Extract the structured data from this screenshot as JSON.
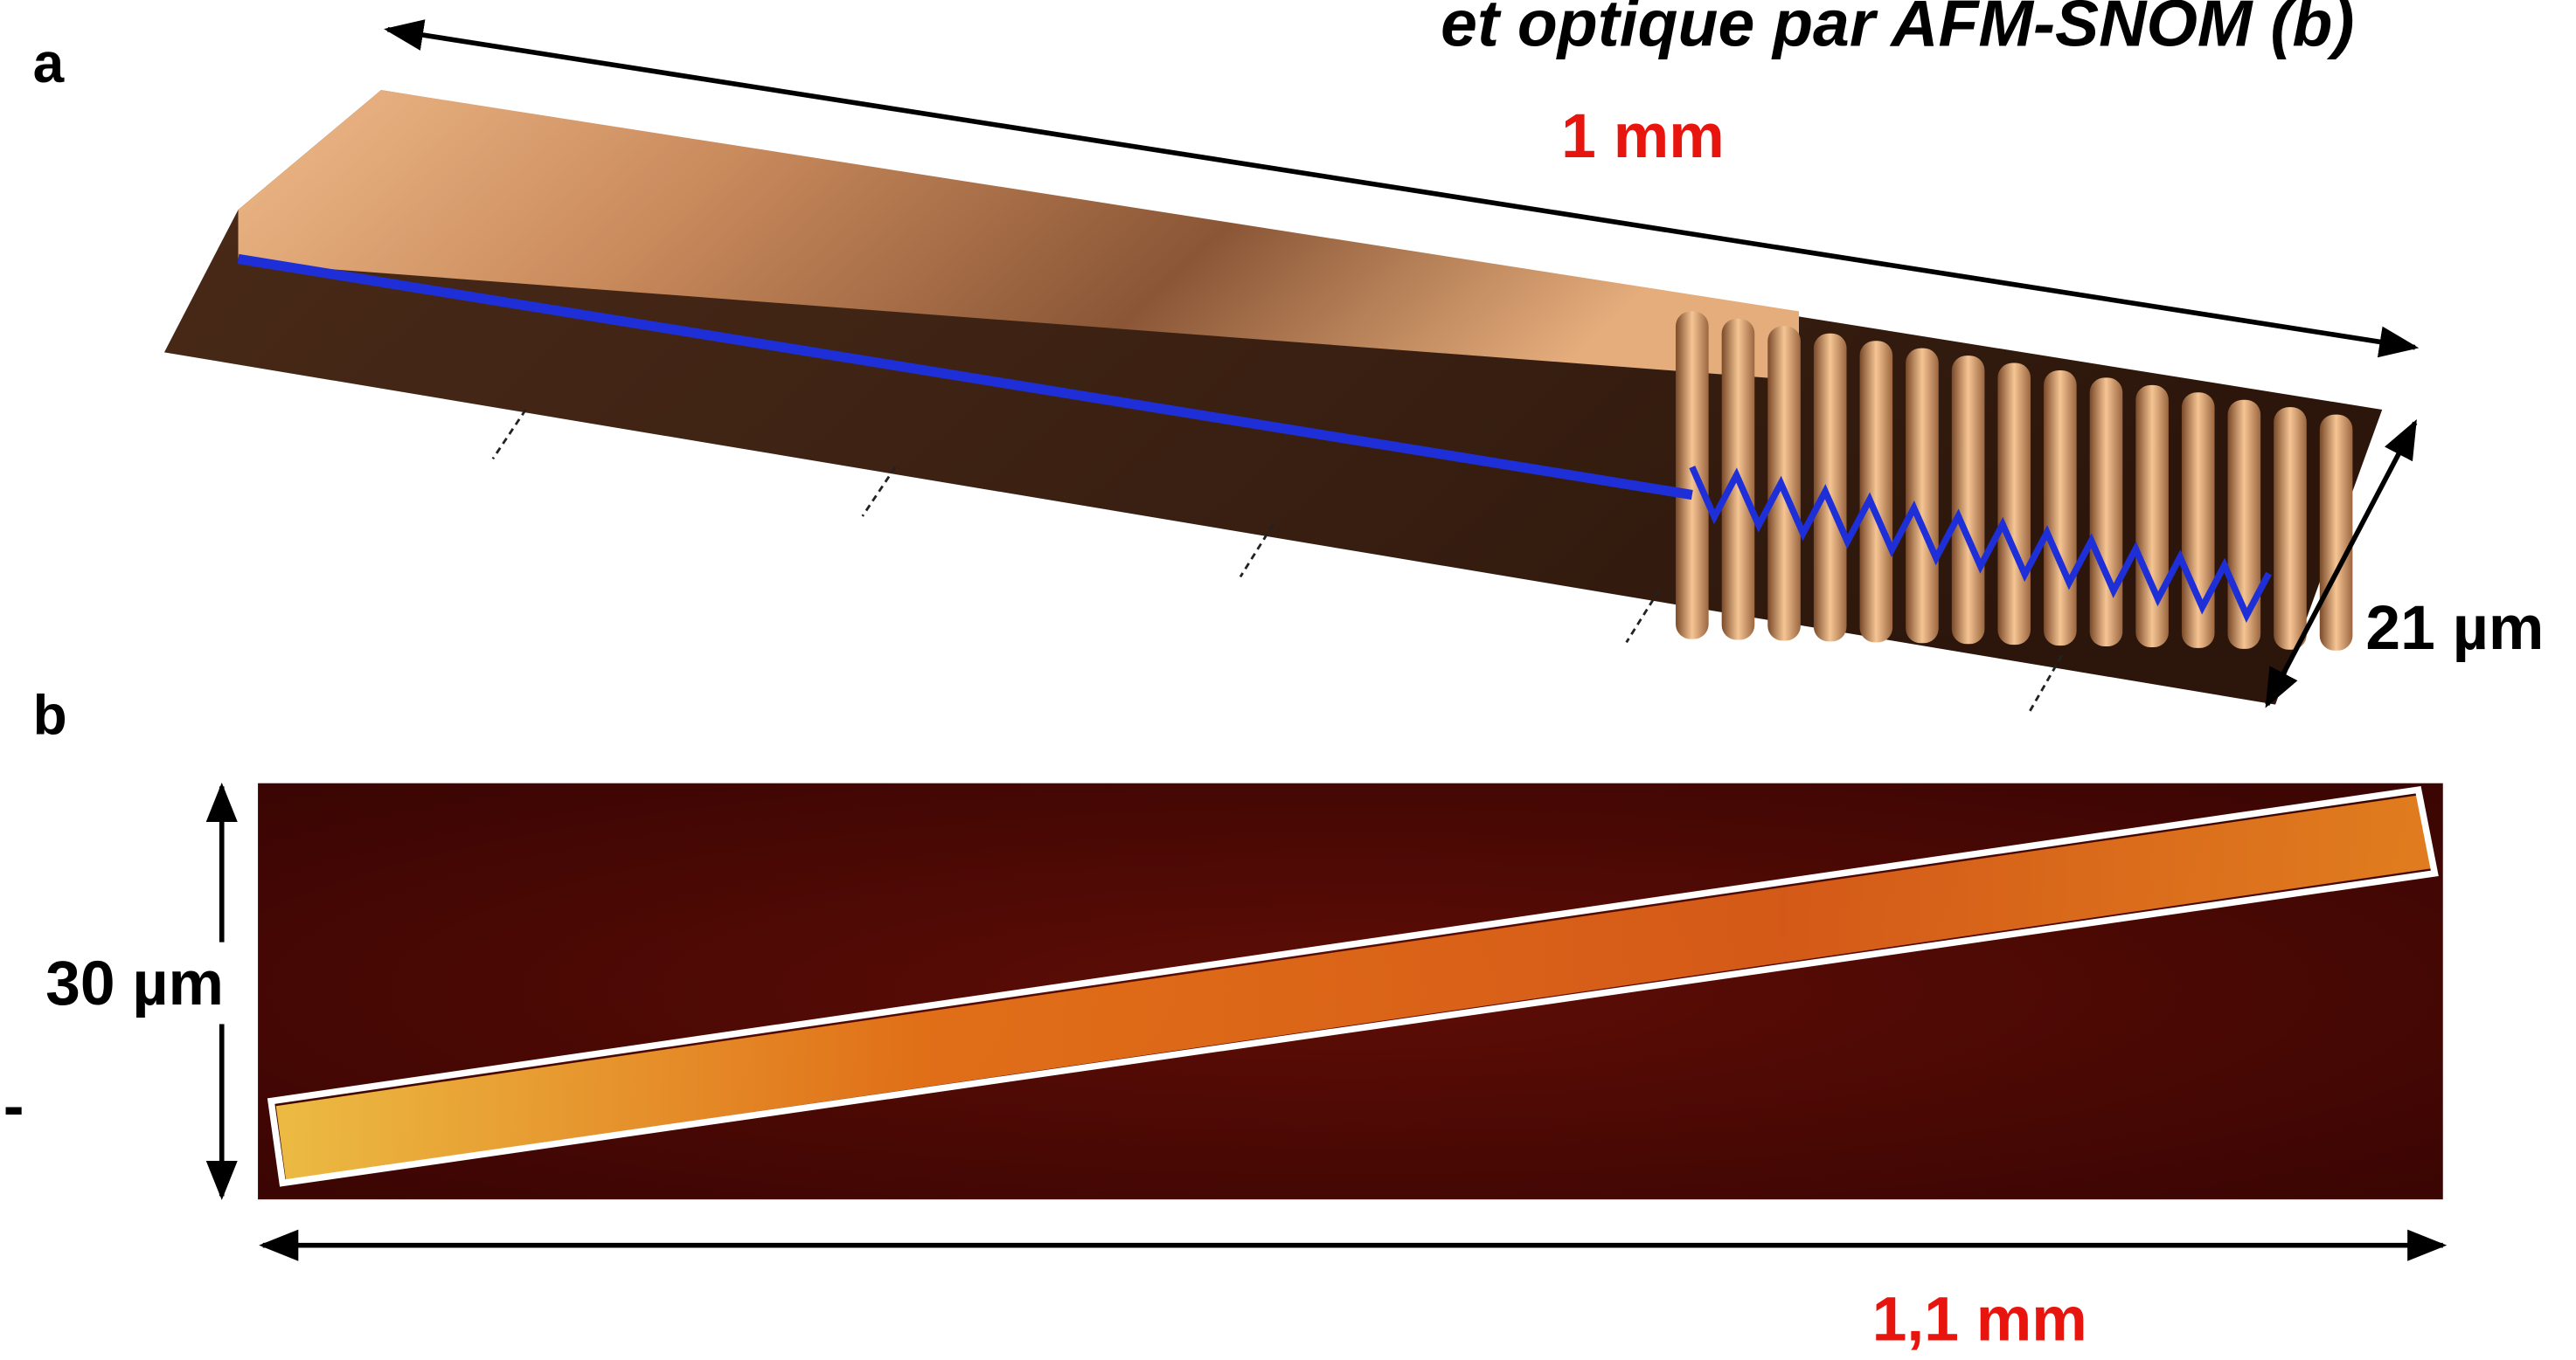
{
  "header": {
    "title": "et optique par AFM-SNOM (b)"
  },
  "panel_a": {
    "label": "a",
    "length_label": "1 mm",
    "width_label": "21 µm"
  },
  "panel_b": {
    "label": "b",
    "height_label": "30 µm",
    "side_mark": "-",
    "length_label": "1,1 mm"
  }
}
